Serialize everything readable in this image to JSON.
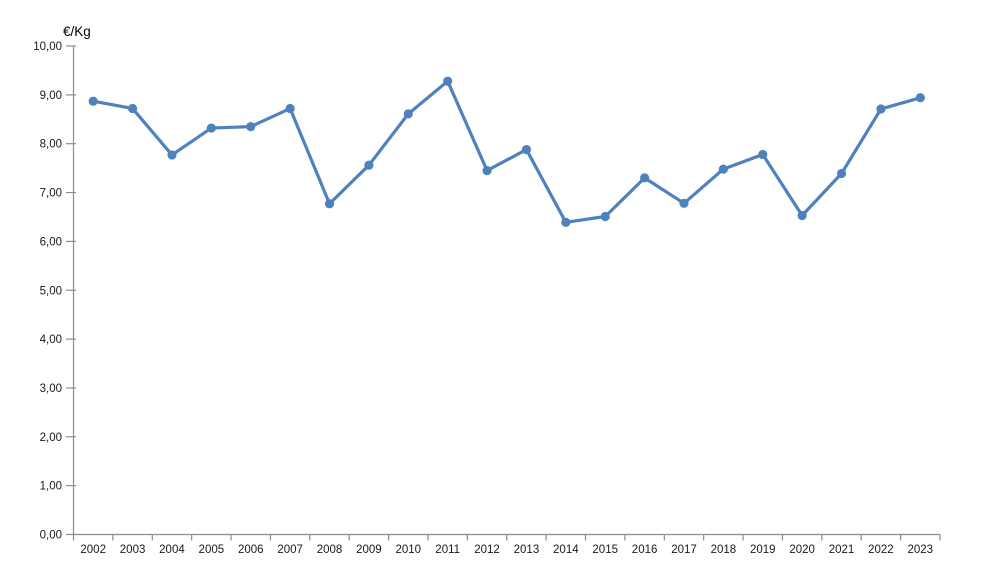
{
  "chart_data": {
    "type": "line",
    "title": "€/Kg",
    "categories": [
      "2002",
      "2003",
      "2004",
      "2005",
      "2006",
      "2007",
      "2008",
      "2009",
      "2010",
      "2011",
      "2012",
      "2013",
      "2014",
      "2015",
      "2016",
      "2017",
      "2018",
      "2019",
      "2020",
      "2021",
      "2022",
      "2023"
    ],
    "series": [
      {
        "name": "€/Kg",
        "values": [
          8.87,
          8.72,
          7.77,
          8.32,
          8.35,
          8.72,
          6.77,
          7.56,
          8.61,
          9.28,
          7.45,
          7.88,
          6.39,
          6.51,
          7.3,
          6.78,
          7.48,
          7.78,
          6.53,
          7.39,
          8.71,
          8.94
        ]
      }
    ],
    "xlabel": "",
    "ylabel": "€/Kg",
    "ylim": [
      0,
      10
    ],
    "y_ticks": [
      0,
      1,
      2,
      3,
      4,
      5,
      6,
      7,
      8,
      9,
      10
    ],
    "y_tick_labels": [
      "0,00",
      "1,00",
      "2,00",
      "3,00",
      "4,00",
      "5,00",
      "6,00",
      "7,00",
      "8,00",
      "9,00",
      "10,00"
    ],
    "grid": "off",
    "legend": "none",
    "marker": "circle"
  },
  "colors": {
    "line": "#4f81bd",
    "marker": "#4f81bd",
    "axis": "#8c8c8c",
    "tick_text": "#1a1a1a",
    "background": "#ffffff"
  }
}
